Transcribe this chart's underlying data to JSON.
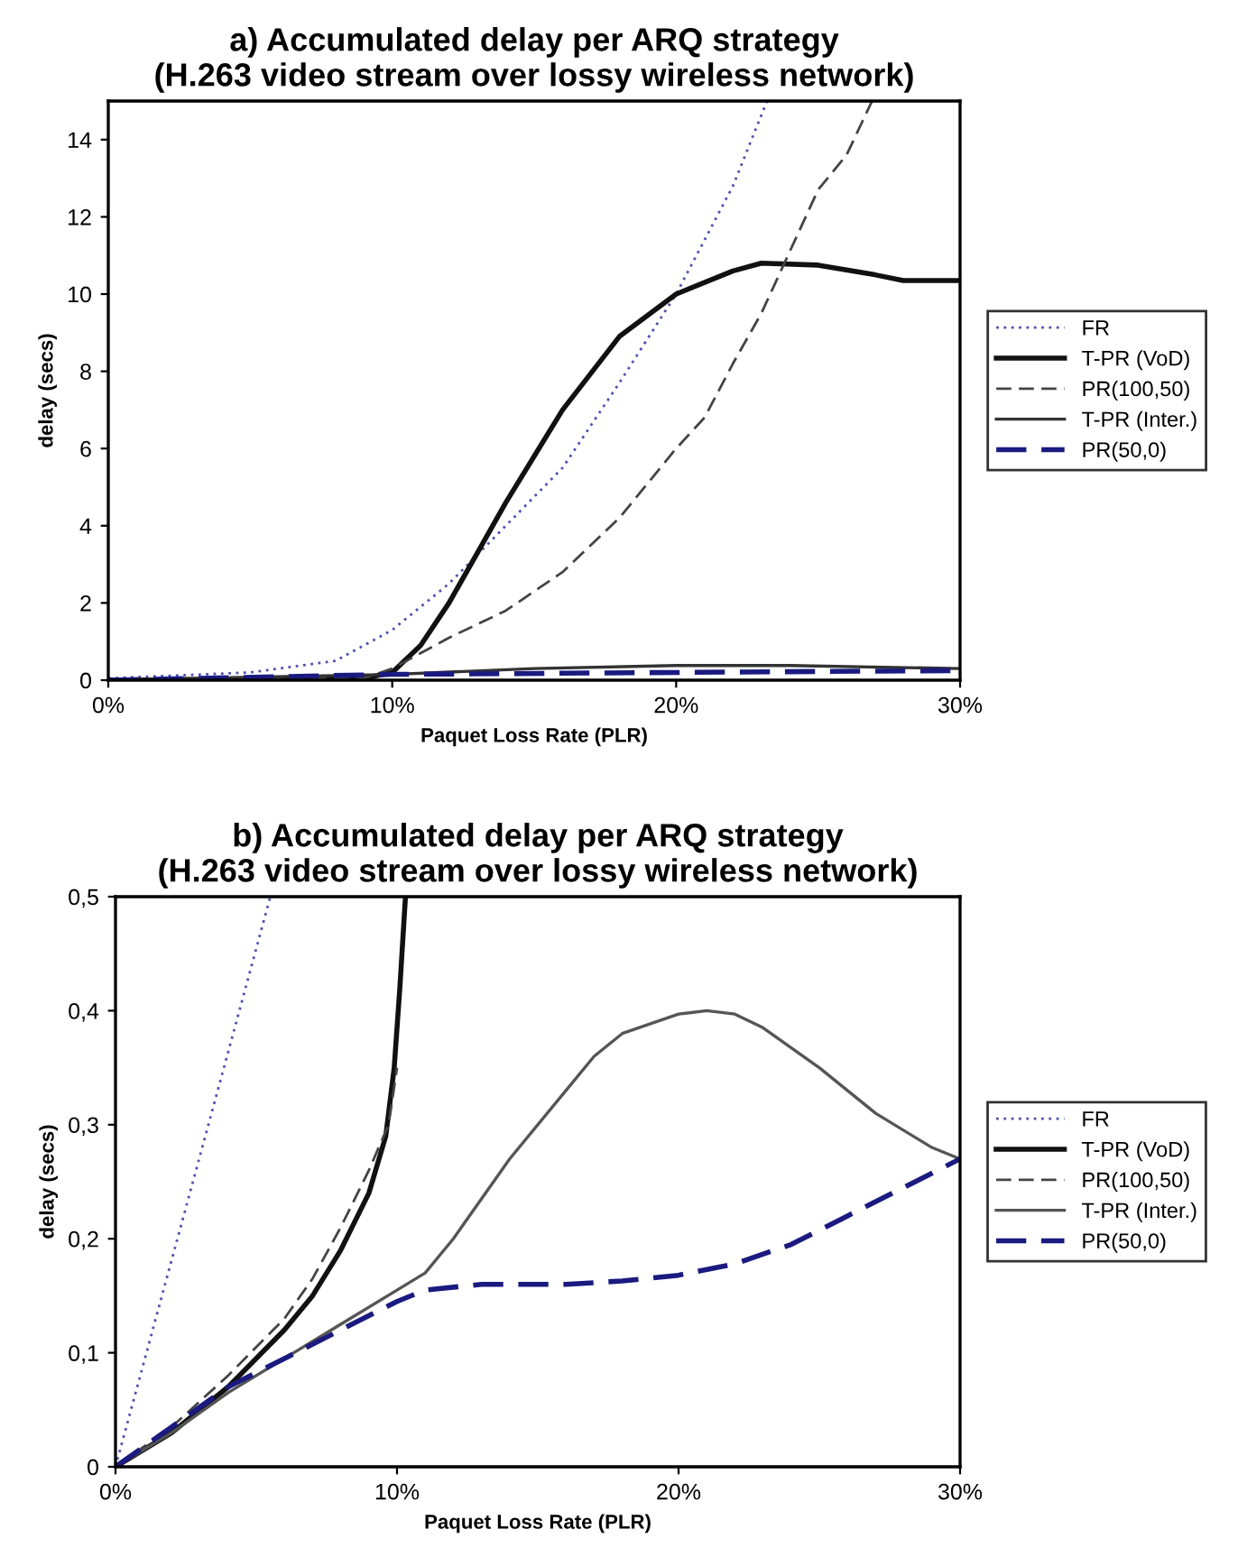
{
  "chart_data": [
    {
      "type": "line",
      "title": "a) Accumulated delay per ARQ strategy\n(H.263 video stream over lossy wireless network)",
      "xlabel": "Paquet Loss Rate (PLR)",
      "ylabel": "delay (secs)",
      "xlim": [
        0,
        30
      ],
      "xticks": [
        {
          "value": 0,
          "label": "0%"
        },
        {
          "value": 10,
          "label": "10%"
        },
        {
          "value": 20,
          "label": "20%"
        },
        {
          "value": 30,
          "label": "30%"
        }
      ],
      "ylim": [
        0,
        15
      ],
      "yticks": [
        0,
        2,
        4,
        6,
        8,
        10,
        12,
        14
      ],
      "grid": false,
      "legend": "right",
      "marker": "none",
      "series": [
        {
          "name": "FR",
          "color": "#5050b0",
          "line_style": "dotted",
          "x": [
            0,
            5,
            8,
            10,
            12,
            14,
            16,
            18,
            20,
            22,
            23.2
          ],
          "values": [
            0.05,
            0.2,
            0.5,
            1.3,
            2.5,
            4.0,
            5.5,
            7.7,
            10.0,
            12.8,
            15
          ]
        },
        {
          "name": "T-PR (VoD)",
          "color": "#111111",
          "line_style": "solid",
          "x": [
            0,
            9,
            10,
            11,
            12,
            13,
            14,
            15,
            16,
            18,
            20,
            22,
            23,
            25,
            27,
            28,
            30
          ],
          "values": [
            0,
            0.05,
            0.2,
            0.9,
            2.0,
            3.3,
            4.6,
            5.8,
            7.0,
            8.9,
            10.0,
            10.6,
            10.8,
            10.75,
            10.5,
            10.35,
            10.35
          ]
        },
        {
          "name": "PR(100,50)",
          "color": "#444444",
          "line_style": "dashed",
          "x": [
            0,
            9,
            10,
            11,
            12,
            14,
            16,
            18,
            20,
            21,
            22,
            23,
            24,
            25,
            26,
            26.9
          ],
          "values": [
            0,
            0.05,
            0.3,
            0.7,
            1.1,
            1.8,
            2.8,
            4.2,
            6.0,
            6.8,
            8.2,
            9.5,
            11.1,
            12.7,
            13.6,
            15
          ]
        },
        {
          "name": "T-PR (Inter.)",
          "color": "#333333",
          "line_style": "solid",
          "x": [
            0,
            10,
            15,
            20,
            24,
            30
          ],
          "values": [
            0,
            0.15,
            0.3,
            0.38,
            0.38,
            0.3
          ]
        },
        {
          "name": "PR(50,0)",
          "color": "#1a1a80",
          "line_style": "dashed",
          "x": [
            0,
            10,
            20,
            30
          ],
          "values": [
            0,
            0.15,
            0.2,
            0.25
          ]
        }
      ]
    },
    {
      "type": "line",
      "title": "b) Accumulated delay per ARQ strategy\n(H.263 video stream over lossy wireless network)",
      "xlabel": "Paquet Loss Rate (PLR)",
      "ylabel": "delay (secs)",
      "xlim": [
        0,
        30
      ],
      "xticks": [
        {
          "value": 0,
          "label": "0%"
        },
        {
          "value": 10,
          "label": "10%"
        },
        {
          "value": 20,
          "label": "20%"
        },
        {
          "value": 30,
          "label": "30%"
        }
      ],
      "ylim": [
        0,
        0.5
      ],
      "yticks": [
        0,
        {
          "value": 0.1,
          "label": "0,1"
        },
        {
          "value": 0.2,
          "label": "0,2"
        },
        {
          "value": 0.3,
          "label": "0,3"
        },
        {
          "value": 0.4,
          "label": "0,4"
        },
        {
          "value": 0.5,
          "label": "0,5"
        }
      ],
      "grid": false,
      "legend": "right",
      "marker": "none",
      "series": [
        {
          "name": "FR",
          "color": "#5050b0",
          "line_style": "dotted",
          "x": [
            0,
            5.5
          ],
          "values": [
            0,
            0.5
          ]
        },
        {
          "name": "T-PR (VoD)",
          "color": "#111111",
          "line_style": "solid",
          "x": [
            0,
            2,
            4,
            6,
            7,
            8,
            9,
            9.6,
            9.9,
            10.1,
            10.3
          ],
          "values": [
            0,
            0.03,
            0.07,
            0.12,
            0.15,
            0.19,
            0.24,
            0.29,
            0.35,
            0.42,
            0.5
          ]
        },
        {
          "name": "PR(100,50)",
          "color": "#444444",
          "line_style": "dashed",
          "x": [
            0,
            2,
            4,
            6,
            7,
            8,
            9,
            9.7,
            10
          ],
          "values": [
            0,
            0.035,
            0.08,
            0.13,
            0.165,
            0.21,
            0.26,
            0.3,
            0.35
          ]
        },
        {
          "name": "T-PR (Inter.)",
          "color": "#555555",
          "line_style": "solid",
          "x": [
            0,
            2,
            4,
            6,
            8,
            10,
            11,
            12,
            14,
            16,
            17,
            18,
            20,
            21,
            22,
            23,
            25,
            27,
            29,
            30
          ],
          "values": [
            0,
            0.03,
            0.065,
            0.095,
            0.125,
            0.155,
            0.17,
            0.2,
            0.27,
            0.33,
            0.36,
            0.38,
            0.397,
            0.4,
            0.397,
            0.385,
            0.35,
            0.31,
            0.28,
            0.27
          ]
        },
        {
          "name": "PR(50,0)",
          "color": "#1a1a80",
          "line_style": "dashed",
          "x": [
            0,
            2,
            4,
            6,
            8,
            10,
            11,
            13,
            16,
            18,
            20,
            22,
            24,
            26,
            28,
            30
          ],
          "values": [
            0,
            0.035,
            0.07,
            0.095,
            0.12,
            0.145,
            0.155,
            0.16,
            0.16,
            0.163,
            0.168,
            0.178,
            0.195,
            0.22,
            0.245,
            0.27
          ]
        }
      ]
    }
  ]
}
